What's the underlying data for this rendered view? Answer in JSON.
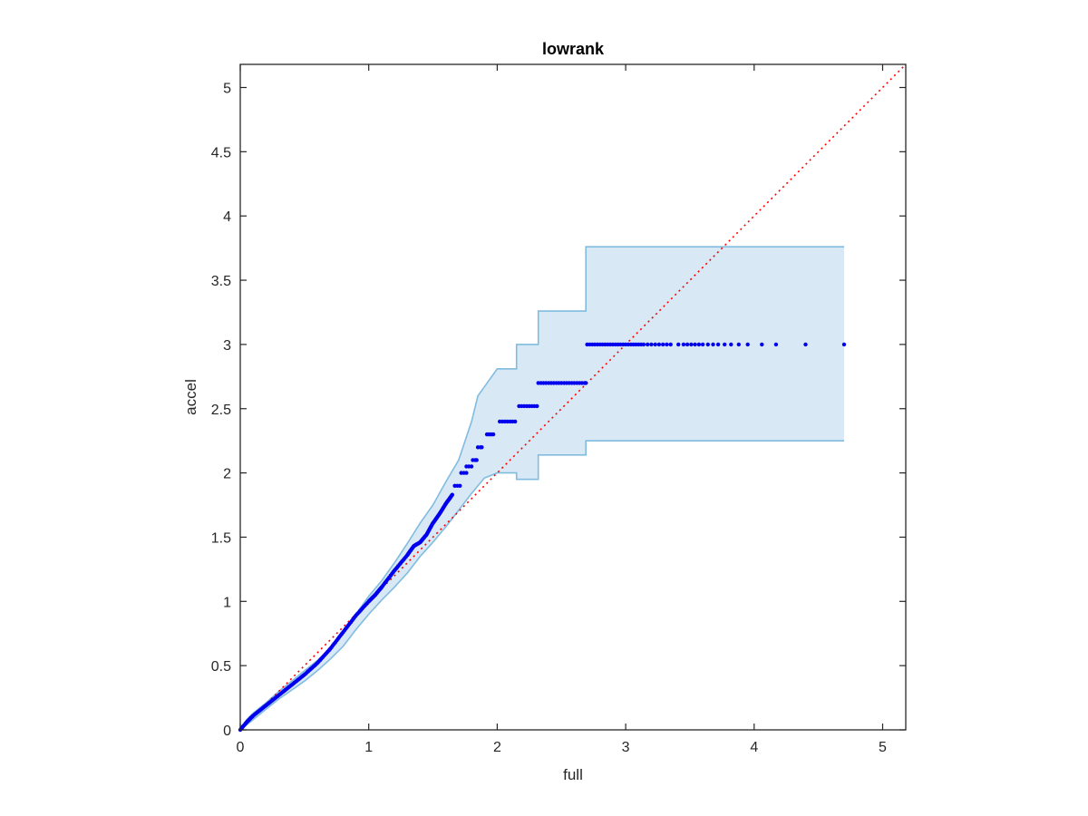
{
  "chart_data": {
    "type": "scatter",
    "title": "lowrank",
    "xlabel": "full",
    "ylabel": "accel",
    "xlim": [
      0,
      5.18
    ],
    "ylim": [
      0,
      5.18
    ],
    "xticks": [
      0,
      1,
      2,
      3,
      4,
      5
    ],
    "xtick_labels": [
      "0",
      "1",
      "2",
      "3",
      "4",
      "5"
    ],
    "yticks": [
      0,
      0.5,
      1,
      1.5,
      2,
      2.5,
      3,
      3.5,
      4,
      4.5,
      5
    ],
    "ytick_labels": [
      "0",
      "0.5",
      "1",
      "1.5",
      "2",
      "2.5",
      "3",
      "3.5",
      "4",
      "4.5",
      "5"
    ],
    "grid": false,
    "reference_line": {
      "style": "dotted",
      "color": "#ff0000",
      "points": [
        [
          0,
          0
        ],
        [
          5.18,
          5.18
        ]
      ]
    },
    "band": {
      "fill_color": "#d8e8f4",
      "edge_color": "#80bce0",
      "upper": [
        [
          0,
          0
        ],
        [
          0.05,
          0.08
        ],
        [
          0.1,
          0.13
        ],
        [
          0.2,
          0.21
        ],
        [
          0.3,
          0.3
        ],
        [
          0.4,
          0.38
        ],
        [
          0.5,
          0.46
        ],
        [
          0.6,
          0.54
        ],
        [
          0.7,
          0.63
        ],
        [
          0.8,
          0.76
        ],
        [
          0.9,
          0.9
        ],
        [
          1.0,
          1.04
        ],
        [
          1.1,
          1.16
        ],
        [
          1.2,
          1.3
        ],
        [
          1.3,
          1.45
        ],
        [
          1.4,
          1.61
        ],
        [
          1.5,
          1.75
        ],
        [
          1.6,
          1.93
        ],
        [
          1.7,
          2.1
        ],
        [
          1.8,
          2.4
        ],
        [
          1.85,
          2.6
        ],
        [
          1.9,
          2.67
        ],
        [
          2.0,
          2.81
        ],
        [
          2.15,
          2.81
        ],
        [
          2.15,
          3.0
        ],
        [
          2.32,
          3.0
        ],
        [
          2.32,
          3.26
        ],
        [
          2.69,
          3.26
        ],
        [
          2.69,
          3.76
        ],
        [
          4.7,
          3.76
        ]
      ],
      "lower": [
        [
          0,
          0
        ],
        [
          0.1,
          0.08
        ],
        [
          0.2,
          0.16
        ],
        [
          0.3,
          0.24
        ],
        [
          0.4,
          0.31
        ],
        [
          0.5,
          0.38
        ],
        [
          0.6,
          0.46
        ],
        [
          0.7,
          0.55
        ],
        [
          0.8,
          0.65
        ],
        [
          0.9,
          0.78
        ],
        [
          1.0,
          0.9
        ],
        [
          1.1,
          1.01
        ],
        [
          1.2,
          1.11
        ],
        [
          1.3,
          1.22
        ],
        [
          1.4,
          1.35
        ],
        [
          1.5,
          1.46
        ],
        [
          1.6,
          1.58
        ],
        [
          1.7,
          1.71
        ],
        [
          1.8,
          1.84
        ],
        [
          1.9,
          1.96
        ],
        [
          2.0,
          2.0
        ],
        [
          2.15,
          2.0
        ],
        [
          2.15,
          1.95
        ],
        [
          2.32,
          1.95
        ],
        [
          2.32,
          2.14
        ],
        [
          2.69,
          2.14
        ],
        [
          2.69,
          2.25
        ],
        [
          4.7,
          2.25
        ]
      ]
    },
    "series": [
      {
        "color": "#0000ee",
        "curve": [
          [
            0.0,
            0.0
          ],
          [
            0.05,
            0.06
          ],
          [
            0.1,
            0.11
          ],
          [
            0.2,
            0.19
          ],
          [
            0.3,
            0.27
          ],
          [
            0.4,
            0.35
          ],
          [
            0.5,
            0.43
          ],
          [
            0.6,
            0.52
          ],
          [
            0.7,
            0.63
          ],
          [
            0.8,
            0.76
          ],
          [
            0.9,
            0.89
          ],
          [
            1.0,
            1.0
          ],
          [
            1.05,
            1.05
          ],
          [
            1.1,
            1.11
          ],
          [
            1.2,
            1.24
          ],
          [
            1.3,
            1.36
          ],
          [
            1.35,
            1.43
          ],
          [
            1.4,
            1.46
          ],
          [
            1.45,
            1.52
          ],
          [
            1.5,
            1.61
          ],
          [
            1.55,
            1.68
          ],
          [
            1.6,
            1.76
          ],
          [
            1.65,
            1.83
          ]
        ],
        "levels": [
          {
            "y": 1.9,
            "x": [
              1.67,
              1.69,
              1.71
            ]
          },
          {
            "y": 2.0,
            "x": [
              1.72,
              1.74,
              1.76
            ]
          },
          {
            "y": 2.05,
            "x": [
              1.76,
              1.78,
              1.8
            ]
          },
          {
            "y": 2.1,
            "x": [
              1.81,
              1.83,
              1.84
            ]
          },
          {
            "y": 2.2,
            "x": [
              1.85,
              1.87,
              1.88
            ]
          },
          {
            "y": 2.3,
            "x": [
              1.92,
              1.93,
              1.94,
              1.95,
              1.96,
              1.97
            ]
          },
          {
            "y": 2.4,
            "x": [
              2.02,
              2.04,
              2.06,
              2.08,
              2.1,
              2.12,
              2.14
            ]
          },
          {
            "y": 2.52,
            "x": [
              2.17,
              2.19,
              2.21,
              2.23,
              2.25,
              2.27,
              2.29,
              2.31
            ]
          },
          {
            "y": 2.7,
            "x": [
              2.32,
              2.34,
              2.36,
              2.38,
              2.4,
              2.42,
              2.44,
              2.46,
              2.48,
              2.5,
              2.52,
              2.54,
              2.56,
              2.58,
              2.6,
              2.62,
              2.64,
              2.66,
              2.68,
              2.69
            ]
          },
          {
            "y": 3.0,
            "x": [
              2.7,
              2.72,
              2.74,
              2.76,
              2.78,
              2.8,
              2.82,
              2.84,
              2.86,
              2.88,
              2.9,
              2.92,
              2.94,
              2.96,
              2.98,
              3.0,
              3.02,
              3.04,
              3.06,
              3.08,
              3.1,
              3.12,
              3.14,
              3.17,
              3.2,
              3.23,
              3.26,
              3.29,
              3.32,
              3.35,
              3.41,
              3.45,
              3.48,
              3.51,
              3.54,
              3.57,
              3.6,
              3.64,
              3.68,
              3.72,
              3.77,
              3.82,
              3.88,
              3.95,
              4.06,
              4.17,
              4.4,
              4.7
            ]
          }
        ]
      }
    ]
  }
}
